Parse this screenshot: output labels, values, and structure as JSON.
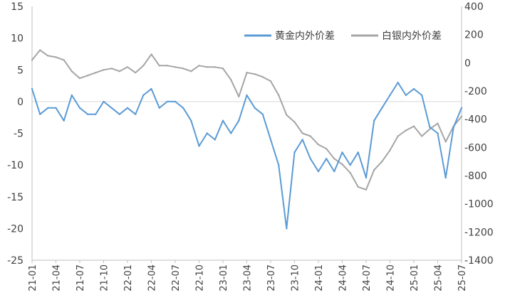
{
  "chart_data": {
    "type": "line",
    "title": "",
    "xlabel": "",
    "ylabel": "",
    "y2label": "",
    "ylim": [
      -25,
      15
    ],
    "y2lim": [
      -1400,
      400
    ],
    "yticks": [
      "15",
      "10",
      "5",
      "0",
      "-5",
      "-10",
      "-15",
      "-20",
      "-25"
    ],
    "y2ticks": [
      "400",
      "200",
      "0",
      "-200",
      "-400",
      "-600",
      "-800",
      "-1000",
      "-1200",
      "-1400"
    ],
    "xticks": [
      "21-01",
      "21-04",
      "21-07",
      "21-10",
      "22-01",
      "22-04",
      "22-07",
      "22-10",
      "23-01",
      "23-04",
      "23-07",
      "23-10",
      "24-01",
      "24-04",
      "24-07",
      "24-10",
      "25-01",
      "25-04",
      "25-07"
    ],
    "legend_position": "top-right",
    "grid": false,
    "series": [
      {
        "name": "黄金内外价差",
        "axis": "left",
        "color": "#5b9bd5",
        "x": [
          "21-01",
          "21-02",
          "21-03",
          "21-04",
          "21-05",
          "21-06",
          "21-07",
          "21-08",
          "21-09",
          "21-10",
          "21-11",
          "21-12",
          "22-01",
          "22-02",
          "22-03",
          "22-04",
          "22-05",
          "22-06",
          "22-07",
          "22-08",
          "22-09",
          "22-10",
          "22-11",
          "22-12",
          "23-01",
          "23-02",
          "23-03",
          "23-04",
          "23-05",
          "23-06",
          "23-07",
          "23-08",
          "23-09",
          "23-10",
          "23-11",
          "23-12",
          "24-01",
          "24-02",
          "24-03",
          "24-04",
          "24-05",
          "24-06",
          "24-07",
          "24-08",
          "24-09",
          "24-10",
          "24-11",
          "24-12",
          "25-01",
          "25-02",
          "25-03",
          "25-04",
          "25-05",
          "25-06",
          "25-07"
        ],
        "values": [
          2,
          -2,
          -1,
          -1,
          -3,
          1,
          -1,
          -2,
          -2,
          0,
          -1,
          -2,
          -1,
          -2,
          1,
          2,
          -1,
          0,
          0,
          -1,
          -3,
          -7,
          -5,
          -6,
          -3,
          -5,
          -3,
          1,
          -1,
          -2,
          -6,
          -10,
          -20,
          -8,
          -6,
          -9,
          -11,
          -9,
          -11,
          -8,
          -10,
          -8,
          -12,
          -3,
          -1,
          1,
          3,
          1,
          2,
          1,
          -4,
          -5,
          -12,
          -4,
          -1
        ]
      },
      {
        "name": "白银内外价差",
        "axis": "right",
        "color": "#a5a5a5",
        "x": [
          "21-01",
          "21-02",
          "21-03",
          "21-04",
          "21-05",
          "21-06",
          "21-07",
          "21-08",
          "21-09",
          "21-10",
          "21-11",
          "21-12",
          "22-01",
          "22-02",
          "22-03",
          "22-04",
          "22-05",
          "22-06",
          "22-07",
          "22-08",
          "22-09",
          "22-10",
          "22-11",
          "22-12",
          "23-01",
          "23-02",
          "23-03",
          "23-04",
          "23-05",
          "23-06",
          "23-07",
          "23-08",
          "23-09",
          "23-10",
          "23-11",
          "23-12",
          "24-01",
          "24-02",
          "24-03",
          "24-04",
          "24-05",
          "24-06",
          "24-07",
          "24-08",
          "24-09",
          "24-10",
          "24-11",
          "24-12",
          "25-01",
          "25-02",
          "25-03",
          "25-04",
          "25-05",
          "25-06",
          "25-07"
        ],
        "values": [
          20,
          90,
          50,
          40,
          20,
          -60,
          -110,
          -90,
          -70,
          -50,
          -40,
          -60,
          -30,
          -70,
          -20,
          60,
          -20,
          -20,
          -30,
          -40,
          -60,
          -20,
          -30,
          -30,
          -40,
          -120,
          -240,
          -70,
          -80,
          -100,
          -130,
          -230,
          -370,
          -420,
          -500,
          -520,
          -580,
          -610,
          -680,
          -720,
          -780,
          -880,
          -900,
          -760,
          -700,
          -620,
          -520,
          -480,
          -450,
          -520,
          -470,
          -430,
          -560,
          -450,
          -380
        ]
      }
    ]
  }
}
